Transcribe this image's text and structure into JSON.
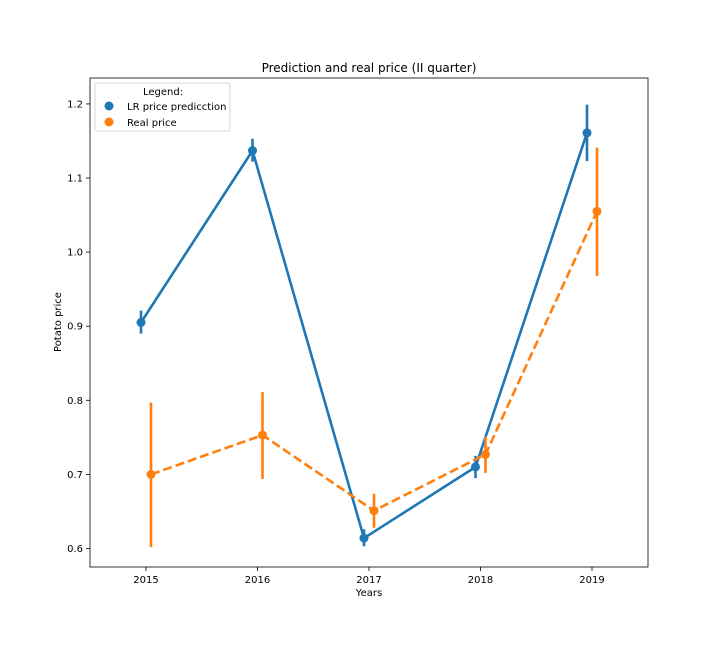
{
  "chart_data": {
    "type": "line",
    "title": "Prediction and real price (II quarter)",
    "xlabel": "Years",
    "ylabel": "Potato price",
    "categories": [
      "2015",
      "2016",
      "2017",
      "2018",
      "2019"
    ],
    "ylim": [
      0.575,
      1.235
    ],
    "yticks": [
      "0.6",
      "0.7",
      "0.8",
      "0.9",
      "1.0",
      "1.1",
      "1.2"
    ],
    "grid": false,
    "legend": {
      "title": "Legend:",
      "placement": "top-left"
    },
    "series": [
      {
        "name": "LR price predicction",
        "color": "#1f77b4",
        "linestyle": "solid",
        "values": [
          0.905,
          1.137,
          0.614,
          0.71,
          1.161
        ],
        "err_low": [
          0.89,
          1.122,
          0.603,
          0.695,
          1.123
        ],
        "err_high": [
          0.921,
          1.153,
          0.626,
          0.725,
          1.199
        ]
      },
      {
        "name": "Real price",
        "color": "#ff7f0e",
        "linestyle": "dashed",
        "values": [
          0.7,
          0.753,
          0.651,
          0.727,
          1.055
        ],
        "err_low": [
          0.602,
          0.694,
          0.628,
          0.702,
          0.968
        ],
        "err_high": [
          0.797,
          0.811,
          0.674,
          0.751,
          1.141
        ]
      }
    ]
  }
}
